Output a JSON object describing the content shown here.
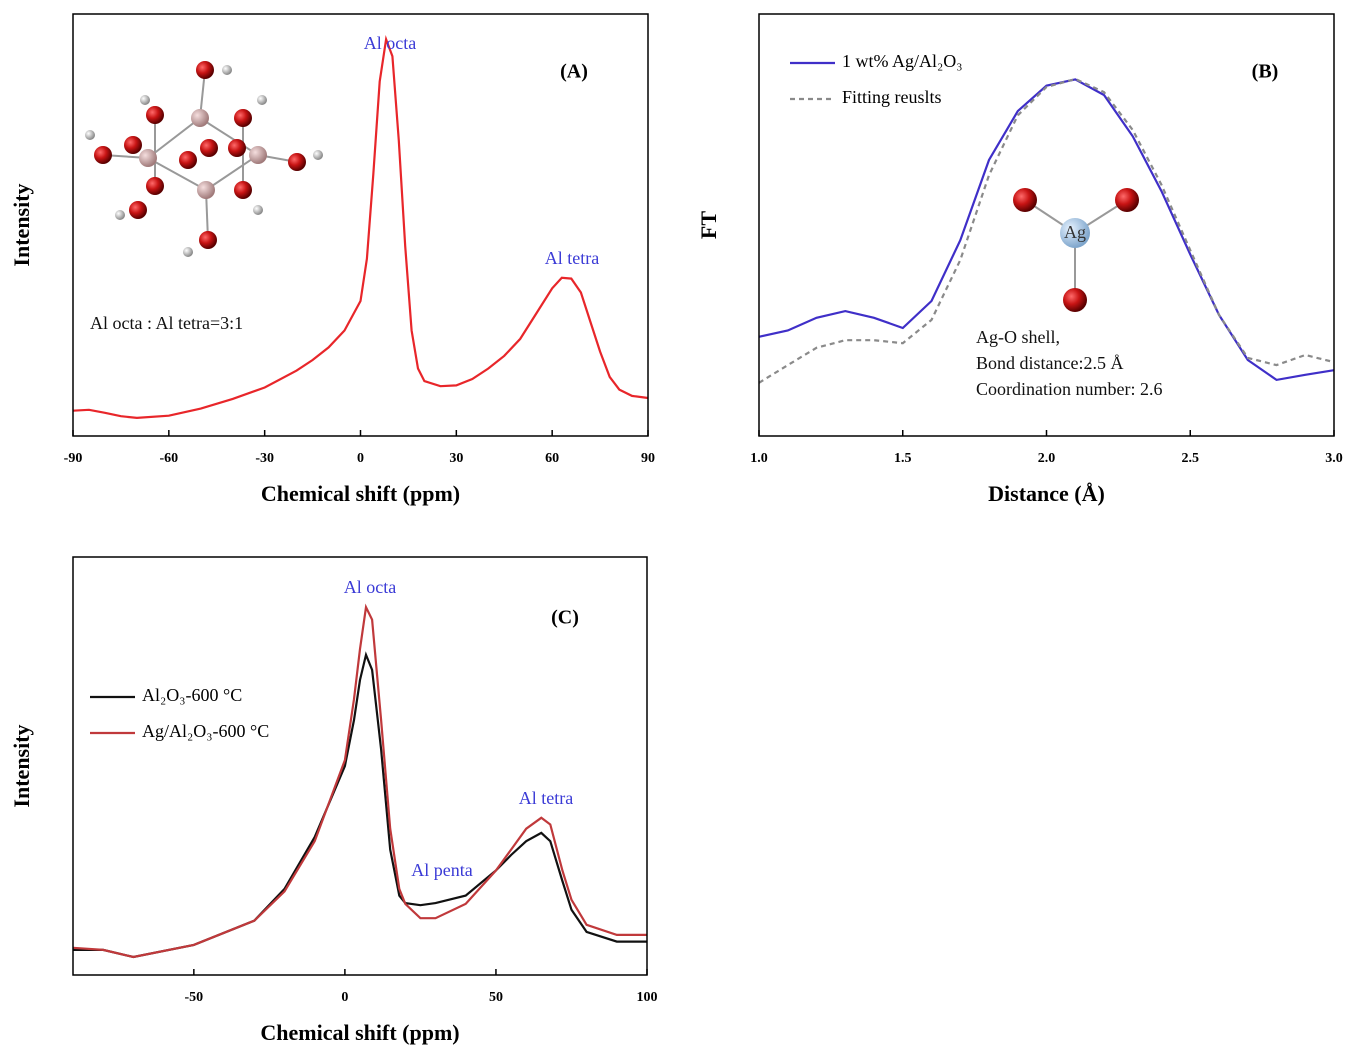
{
  "chart_data": [
    {
      "type": "line",
      "panel_label": "(A)",
      "xlabel": "Chemical shift (ppm)",
      "ylabel": "Intensity",
      "x": [
        -90,
        -85,
        -80,
        -75,
        -70,
        -60,
        -50,
        -40,
        -30,
        -20,
        -15,
        -10,
        -5,
        0,
        2,
        4,
        6,
        8,
        10,
        12,
        14,
        16,
        18,
        20,
        25,
        30,
        35,
        40,
        45,
        50,
        55,
        60,
        63,
        66,
        69,
        72,
        75,
        78,
        81,
        85,
        90
      ],
      "series": [
        {
          "color": "#e8262a",
          "values": [
            6.0,
            6.2,
            5.5,
            4.7,
            4.3,
            4.8,
            6.5,
            8.8,
            11.5,
            15.5,
            18,
            21,
            25,
            32,
            42,
            62,
            84,
            94,
            90,
            70,
            45,
            25,
            16,
            13,
            11.8,
            12,
            13.5,
            16,
            19,
            23,
            29,
            35,
            37.5,
            37.3,
            34,
            27,
            20,
            14,
            11,
            9.5,
            9
          ]
        }
      ],
      "xlim": [
        -90,
        90
      ],
      "xticks": [
        -90,
        -60,
        -30,
        0,
        30,
        60,
        90
      ],
      "ylim": [
        0,
        100
      ],
      "annotations": [
        {
          "text": "Al octa",
          "color": "#3a3ad6"
        },
        {
          "text": "Al tetra",
          "color": "#3a3ad6"
        },
        {
          "text": "Al octa : Al tetra=3:1",
          "color": "#111111"
        }
      ]
    },
    {
      "type": "line",
      "panel_label": "(B)",
      "xlabel": "Distance (Å)",
      "ylabel": "FT",
      "x": [
        1.0,
        1.1,
        1.2,
        1.3,
        1.4,
        1.5,
        1.6,
        1.7,
        1.8,
        1.9,
        2.0,
        2.1,
        2.2,
        2.3,
        2.4,
        2.5,
        2.6,
        2.7,
        2.8,
        2.9,
        3.0
      ],
      "series": [
        {
          "name": "1 wt% Ag/Al₂O₃",
          "color": "#3f2fc8",
          "line_style": "solid",
          "values": [
            23.5,
            25,
            28,
            29.6,
            28,
            25.6,
            32,
            46.4,
            65.4,
            77,
            83,
            84.5,
            80.8,
            71,
            58,
            43,
            28.7,
            18,
            13.3,
            14.5,
            15.6
          ]
        },
        {
          "name": "Fitting reuslts",
          "color": "#8a8a8a",
          "line_style": "dashed",
          "values": [
            12.6,
            16.8,
            20.9,
            22.7,
            22.7,
            22,
            27.5,
            41.7,
            61.8,
            76,
            82.7,
            84.6,
            81.5,
            72.5,
            59.5,
            44,
            28.7,
            18.5,
            16.8,
            19.2,
            17.5
          ]
        }
      ],
      "xlim": [
        1.0,
        3.0
      ],
      "xticks": [
        {
          "value": 1,
          "label": "1.0"
        },
        1.5,
        {
          "value": 2,
          "label": "2.0"
        },
        2.5,
        {
          "value": 3,
          "label": "3.0"
        }
      ],
      "ylim": [
        0,
        100
      ],
      "legend": "upper left",
      "annotations": [
        {
          "text": "Ag",
          "color": "#333333"
        },
        {
          "text": "Ag-O shell,",
          "color": "#111111"
        },
        {
          "text": "Bond distance:2.5 Å",
          "color": "#111111"
        },
        {
          "text": "Coordination number: 2.6",
          "color": "#111111"
        }
      ]
    },
    {
      "type": "line",
      "panel_label": "(C)",
      "xlabel": "Chemical shift (ppm)",
      "ylabel": "Intensity",
      "x": [
        -90,
        -80,
        -70,
        -50,
        -30,
        -20,
        -10,
        0,
        3,
        5,
        7,
        9,
        12,
        15,
        18,
        20,
        25,
        30,
        40,
        50,
        55,
        60,
        65,
        68,
        72,
        75,
        80,
        90,
        100
      ],
      "series": [
        {
          "name": "Al₂O₃-600 °C",
          "color": "#111111",
          "line_style": "solid",
          "values": [
            6,
            6,
            4.3,
            7.2,
            13,
            20.6,
            33,
            50,
            61,
            70.6,
            76.6,
            73,
            54,
            30,
            19,
            17.2,
            16.7,
            17.2,
            19,
            25,
            28.7,
            32,
            34,
            32,
            22.5,
            15.6,
            10.3,
            8,
            8
          ]
        },
        {
          "name": "Ag/Al₂O₃-600 °C",
          "color": "#c0393b",
          "line_style": "solid",
          "values": [
            6.5,
            6,
            4.3,
            7.2,
            13,
            20,
            32,
            51.4,
            66,
            78,
            88,
            85,
            61,
            35,
            20.6,
            17,
            13.6,
            13.6,
            17,
            25,
            30,
            35,
            37.6,
            36,
            25,
            18,
            12,
            9.6,
            9.6
          ]
        }
      ],
      "xlim": [
        -90,
        100
      ],
      "xticks": [
        -50,
        0,
        50,
        100
      ],
      "ylim": [
        0,
        100
      ],
      "legend": "upper left",
      "annotations": [
        {
          "text": "Al octa",
          "color": "#3a3ad6"
        },
        {
          "text": "Al penta",
          "color": "#3a3ad6"
        },
        {
          "text": "Al tetra",
          "color": "#3a3ad6"
        }
      ]
    }
  ]
}
